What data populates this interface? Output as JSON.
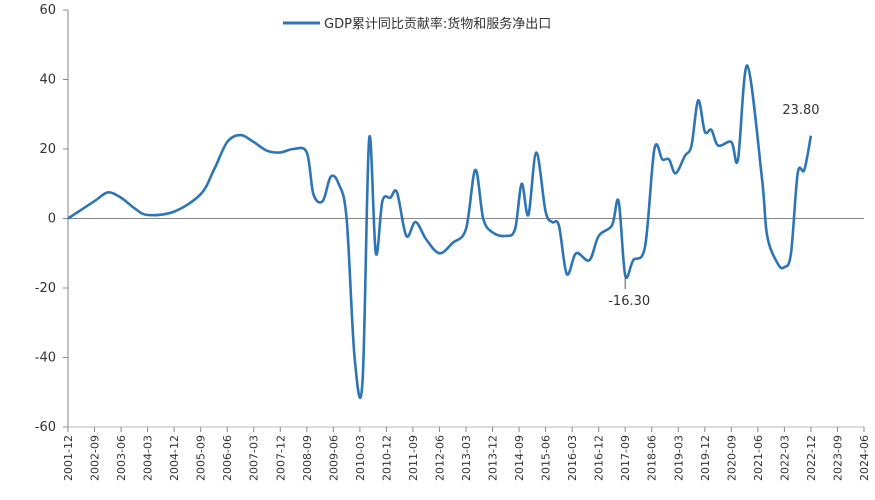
{
  "chart_data": {
    "type": "line",
    "title": "",
    "xlabel": "",
    "ylabel": "",
    "ylim": [
      -60,
      60
    ],
    "yticks": [
      60,
      40,
      20,
      0,
      -20,
      -40,
      -60
    ],
    "grid": false,
    "legend_position": "top",
    "series": [
      {
        "name": "GDP累计同比贡献率:货物和服务净出口",
        "color": "#2E75B6",
        "points": [
          {
            "x": 0,
            "y": 0
          },
          {
            "x": 2,
            "y": 5
          },
          {
            "x": 3,
            "y": 7.5
          },
          {
            "x": 4,
            "y": 6
          },
          {
            "x": 5,
            "y": 3
          },
          {
            "x": 6,
            "y": 1
          },
          {
            "x": 8,
            "y": 2
          },
          {
            "x": 10,
            "y": 7
          },
          {
            "x": 11,
            "y": 14
          },
          {
            "x": 12,
            "y": 22
          },
          {
            "x": 13,
            "y": 24
          },
          {
            "x": 14,
            "y": 22
          },
          {
            "x": 15,
            "y": 19.5
          },
          {
            "x": 16,
            "y": 19
          },
          {
            "x": 17,
            "y": 20
          },
          {
            "x": 18,
            "y": 19
          },
          {
            "x": 18.5,
            "y": 7
          },
          {
            "x": 19.2,
            "y": 5
          },
          {
            "x": 19.8,
            "y": 12
          },
          {
            "x": 20.4,
            "y": 10
          },
          {
            "x": 21,
            "y": 0
          },
          {
            "x": 21.6,
            "y": -40
          },
          {
            "x": 22.2,
            "y": -47
          },
          {
            "x": 22.7,
            "y": 23
          },
          {
            "x": 23.2,
            "y": -10
          },
          {
            "x": 23.7,
            "y": 5
          },
          {
            "x": 24.3,
            "y": 6
          },
          {
            "x": 24.8,
            "y": 7.5
          },
          {
            "x": 25.5,
            "y": -5
          },
          {
            "x": 26.2,
            "y": -1
          },
          {
            "x": 27,
            "y": -6
          },
          {
            "x": 28,
            "y": -10
          },
          {
            "x": 29,
            "y": -7
          },
          {
            "x": 30,
            "y": -3
          },
          {
            "x": 30.7,
            "y": 14
          },
          {
            "x": 31.3,
            "y": 0
          },
          {
            "x": 32,
            "y": -4
          },
          {
            "x": 33,
            "y": -5
          },
          {
            "x": 33.7,
            "y": -3
          },
          {
            "x": 34.2,
            "y": 10
          },
          {
            "x": 34.7,
            "y": 1
          },
          {
            "x": 35.3,
            "y": 19
          },
          {
            "x": 36,
            "y": 2
          },
          {
            "x": 36.5,
            "y": -1
          },
          {
            "x": 37,
            "y": -2
          },
          {
            "x": 37.6,
            "y": -16
          },
          {
            "x": 38.3,
            "y": -10
          },
          {
            "x": 39.3,
            "y": -12
          },
          {
            "x": 40,
            "y": -5
          },
          {
            "x": 41,
            "y": -2
          },
          {
            "x": 41.5,
            "y": 5
          },
          {
            "x": 42,
            "y": -16.3
          },
          {
            "x": 42.6,
            "y": -12
          },
          {
            "x": 43.5,
            "y": -8
          },
          {
            "x": 44.2,
            "y": 20
          },
          {
            "x": 44.8,
            "y": 17
          },
          {
            "x": 45.3,
            "y": 17
          },
          {
            "x": 45.8,
            "y": 13
          },
          {
            "x": 46.5,
            "y": 18
          },
          {
            "x": 47,
            "y": 21
          },
          {
            "x": 47.5,
            "y": 34
          },
          {
            "x": 48,
            "y": 25
          },
          {
            "x": 48.5,
            "y": 25.5
          },
          {
            "x": 49,
            "y": 21
          },
          {
            "x": 50,
            "y": 22
          },
          {
            "x": 50.5,
            "y": 17
          },
          {
            "x": 51.2,
            "y": 44
          },
          {
            "x": 52.3,
            "y": 12
          },
          {
            "x": 52.7,
            "y": -5
          },
          {
            "x": 53.5,
            "y": -13
          },
          {
            "x": 54,
            "y": -14
          },
          {
            "x": 54.5,
            "y": -10
          },
          {
            "x": 55,
            "y": 13
          },
          {
            "x": 55.5,
            "y": 14
          },
          {
            "x": 56,
            "y": 23.8
          }
        ]
      }
    ],
    "x_categories": [
      "2001-12",
      "2002-09",
      "2003-06",
      "2004-03",
      "2004-12",
      "2005-09",
      "2006-06",
      "2007-03",
      "2007-12",
      "2008-09",
      "2009-06",
      "2010-03",
      "2010-12",
      "2011-09",
      "2012-06",
      "2013-03",
      "2013-12",
      "2014-09",
      "2015-06",
      "2016-03",
      "2016-12",
      "2017-09",
      "2018-06",
      "2019-03",
      "2019-12",
      "2020-09",
      "2021-06",
      "2022-03",
      "2022-12",
      "2023-09",
      "2024-06"
    ],
    "annotations": [
      {
        "text": "23.80",
        "x": 56,
        "y": 23.8
      },
      {
        "text": "-16.30",
        "x": 42,
        "y": -16.3
      }
    ]
  }
}
